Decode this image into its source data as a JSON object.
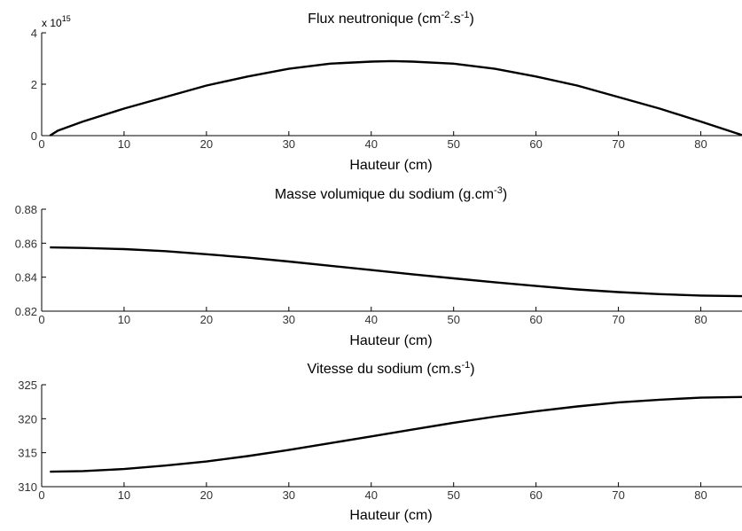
{
  "chart_data": [
    {
      "type": "line",
      "title": {
        "pre": "Flux neutronique (cm",
        "sup1": "-2",
        "mid": ".s",
        "sup2": "-1",
        "post": ")"
      },
      "xlabel": "Hauteur (cm)",
      "ylabel": "",
      "xlim": [
        0,
        85
      ],
      "ylim": [
        0,
        4
      ],
      "xticks": [
        "0",
        "10",
        "20",
        "30",
        "40",
        "50",
        "60",
        "70",
        "80"
      ],
      "yticks": [
        "0",
        "2",
        "4"
      ],
      "multiplier": {
        "base": "x 10",
        "exp": "15"
      },
      "x": [
        1,
        2,
        5,
        10,
        15,
        20,
        25,
        30,
        35,
        40,
        42.5,
        45,
        50,
        55,
        60,
        65,
        70,
        75,
        80,
        85
      ],
      "series": [
        {
          "values": [
            0.0,
            0.2,
            0.55,
            1.05,
            1.5,
            1.95,
            2.3,
            2.6,
            2.8,
            2.88,
            2.9,
            2.88,
            2.8,
            2.6,
            2.3,
            1.95,
            1.5,
            1.05,
            0.55,
            0.02
          ]
        }
      ]
    },
    {
      "type": "line",
      "title": {
        "pre": "Masse volumique du sodium (g.cm",
        "sup1": "-3",
        "post": ")"
      },
      "xlabel": "Hauteur (cm)",
      "ylabel": "",
      "xlim": [
        0,
        85
      ],
      "ylim": [
        0.82,
        0.88
      ],
      "xticks": [
        "0",
        "10",
        "20",
        "30",
        "40",
        "50",
        "60",
        "70",
        "80"
      ],
      "yticks": [
        "0.82",
        "0.84",
        "0.86",
        "0.88"
      ],
      "x": [
        1,
        5,
        10,
        15,
        20,
        25,
        30,
        35,
        40,
        45,
        50,
        55,
        60,
        65,
        70,
        75,
        80,
        85
      ],
      "series": [
        {
          "values": [
            0.8575,
            0.8572,
            0.8565,
            0.8553,
            0.8535,
            0.8515,
            0.8492,
            0.8467,
            0.8442,
            0.8417,
            0.8393,
            0.837,
            0.8348,
            0.8328,
            0.8312,
            0.83,
            0.8292,
            0.8288
          ]
        }
      ]
    },
    {
      "type": "line",
      "title": {
        "pre": "Vitesse du sodium (cm.s",
        "sup1": "-1",
        "post": ")"
      },
      "xlabel": "Hauteur (cm)",
      "ylabel": "",
      "xlim": [
        0,
        85
      ],
      "ylim": [
        310,
        325
      ],
      "xticks": [
        "0",
        "10",
        "20",
        "30",
        "40",
        "50",
        "60",
        "70",
        "80"
      ],
      "yticks": [
        "310",
        "315",
        "320",
        "325"
      ],
      "x": [
        1,
        5,
        10,
        15,
        20,
        25,
        30,
        35,
        40,
        45,
        50,
        55,
        60,
        65,
        70,
        75,
        80,
        85
      ],
      "series": [
        {
          "values": [
            312.2,
            312.3,
            312.6,
            313.1,
            313.7,
            314.5,
            315.4,
            316.4,
            317.4,
            318.4,
            319.4,
            320.3,
            321.1,
            321.8,
            322.4,
            322.8,
            323.1,
            323.2
          ]
        }
      ]
    }
  ]
}
